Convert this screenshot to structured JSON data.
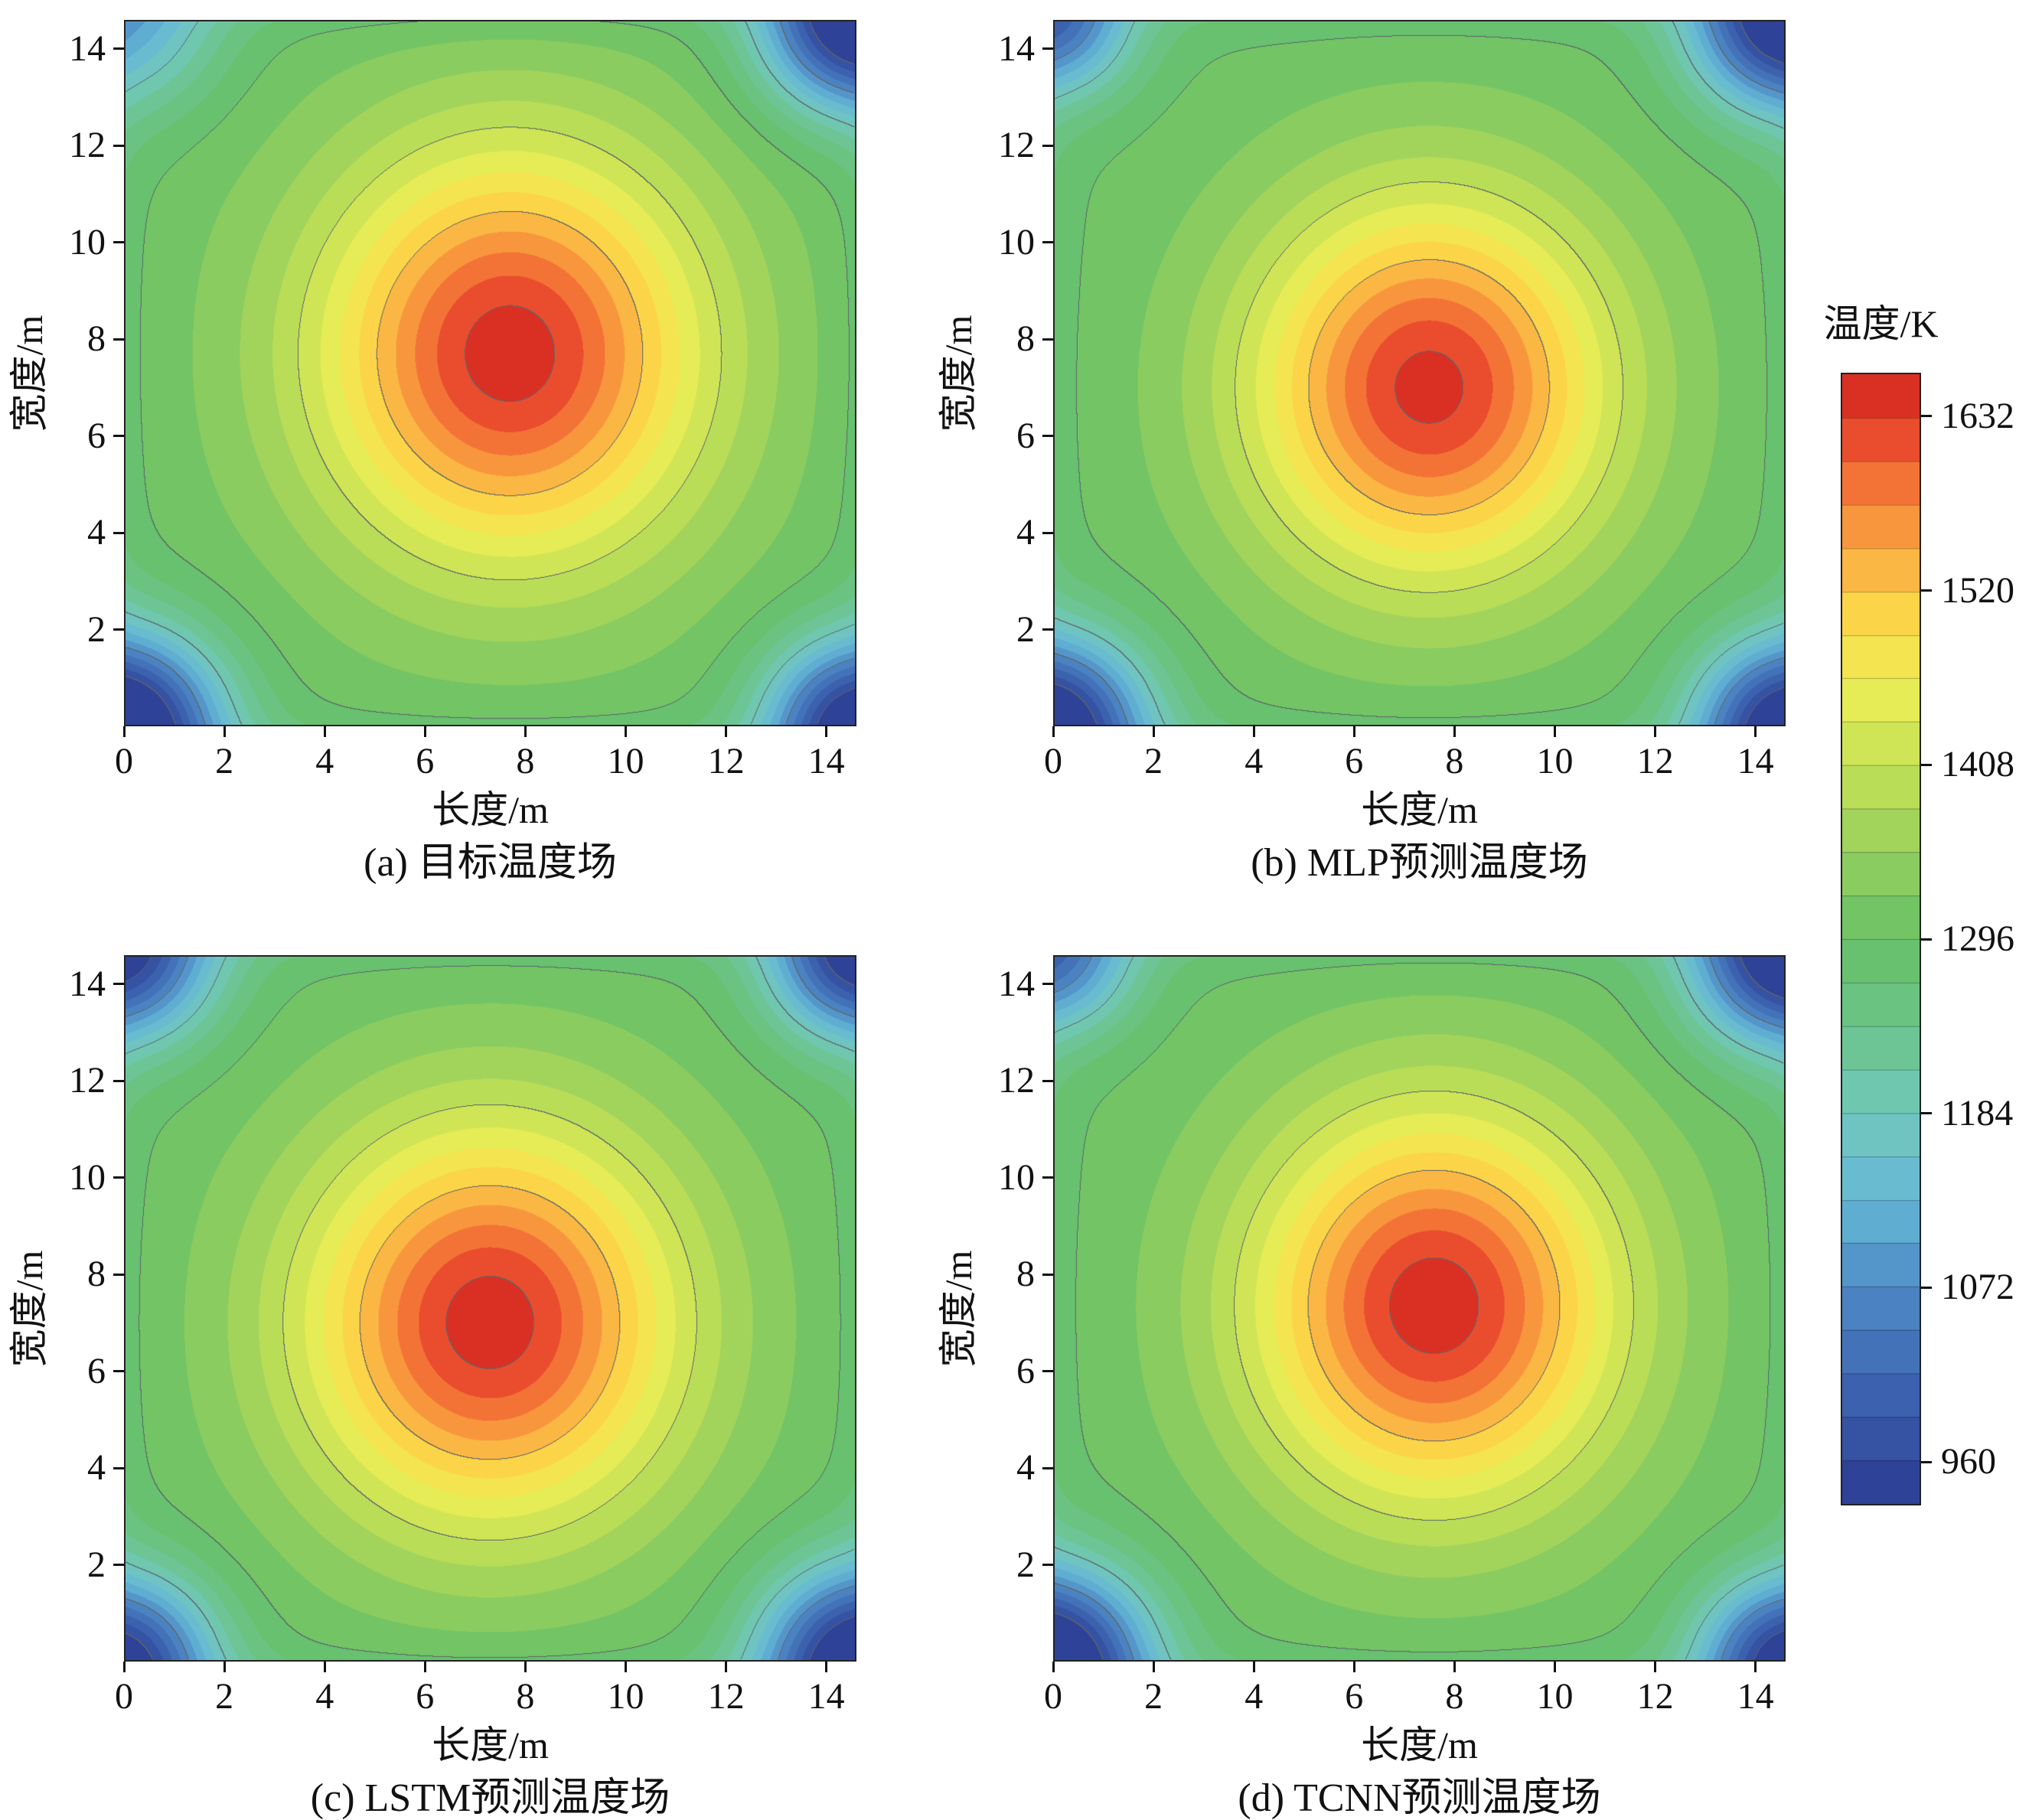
{
  "colorbar": {
    "title": "温度/K",
    "tick_labels": [
      1632,
      1520,
      1408,
      1296,
      1184,
      1072,
      960
    ],
    "value_min": 932,
    "value_max": 1660
  },
  "chart_data": {
    "type": "heatmap",
    "layout": "2x2 filled-contour subplots with shared colorbar",
    "value_unit": "K",
    "value_range": [
      932,
      1660
    ],
    "contour_interval": 28,
    "major_contour_interval": 112,
    "colorbar_title": "温度/K",
    "colorbar_ticks": [
      1632,
      1520,
      1408,
      1296,
      1184,
      1072,
      960
    ],
    "colormap": [
      [
        0.0,
        "#2b3a92"
      ],
      [
        0.1,
        "#3c63b0"
      ],
      [
        0.19,
        "#4f8ac6"
      ],
      [
        0.27,
        "#66b8d6"
      ],
      [
        0.345,
        "#72c8bc"
      ],
      [
        0.42,
        "#6cc48c"
      ],
      [
        0.5,
        "#66c066"
      ],
      [
        0.575,
        "#95cf5e"
      ],
      [
        0.655,
        "#c6e256"
      ],
      [
        0.725,
        "#eeee55"
      ],
      [
        0.795,
        "#fdd147"
      ],
      [
        0.855,
        "#f9a03f"
      ],
      [
        0.91,
        "#f26d35"
      ],
      [
        0.96,
        "#e53c28"
      ],
      [
        1.0,
        "#cf2420"
      ]
    ],
    "subplots": [
      {
        "caption": "(a) 目标温度场",
        "xlabel": "长度/m",
        "ylabel": "宽度/m",
        "x_ticks": [
          0,
          2,
          4,
          6,
          8,
          10,
          12,
          14
        ],
        "y_ticks": [
          2,
          4,
          6,
          8,
          10,
          12,
          14
        ],
        "x_max": 14.6,
        "y_max": 14.6,
        "field": {
          "base": 1302,
          "edge_amp": 28,
          "edge_scale": 0.5,
          "peak": {
            "cx": 7.7,
            "cy": 7.7,
            "sx": 2.75,
            "sy": 3.05,
            "amp": 348
          },
          "cold_corners": [
            {
              "cx": 0,
              "cy": 0,
              "amp": 410,
              "s": 1.35
            },
            {
              "cx": 14.6,
              "cy": 0,
              "amp": 370,
              "s": 1.25
            },
            {
              "cx": 14.6,
              "cy": 14.6,
              "amp": 395,
              "s": 1.3
            },
            {
              "cx": 0,
              "cy": 14.6,
              "amp": 170,
              "s": 1.3
            }
          ]
        }
      },
      {
        "caption": "(b) MLP预测温度场",
        "xlabel": "长度/m",
        "ylabel": "宽度/m",
        "x_ticks": [
          0,
          2,
          4,
          6,
          8,
          10,
          12,
          14
        ],
        "y_ticks": [
          2,
          4,
          6,
          8,
          10,
          12,
          14
        ],
        "x_max": 14.6,
        "y_max": 14.6,
        "field": {
          "base": 1300,
          "edge_amp": 28,
          "edge_scale": 0.5,
          "peak": {
            "cx": 7.5,
            "cy": 7.0,
            "sx": 2.55,
            "sy": 2.8,
            "amp": 344
          },
          "cold_corners": [
            {
              "cx": 0,
              "cy": 0,
              "amp": 380,
              "s": 1.3
            },
            {
              "cx": 14.6,
              "cy": 0,
              "amp": 370,
              "s": 1.25
            },
            {
              "cx": 14.6,
              "cy": 14.6,
              "amp": 385,
              "s": 1.3
            },
            {
              "cx": 0,
              "cy": 14.6,
              "amp": 255,
              "s": 1.1
            }
          ]
        }
      },
      {
        "caption": "(c) LSTM预测温度场",
        "xlabel": "长度/m",
        "ylabel": "宽度/m",
        "x_ticks": [
          0,
          2,
          4,
          6,
          8,
          10,
          12,
          14
        ],
        "y_ticks": [
          2,
          4,
          6,
          8,
          10,
          12,
          14
        ],
        "x_max": 14.6,
        "y_max": 14.6,
        "field": {
          "base": 1300,
          "edge_amp": 28,
          "edge_scale": 0.5,
          "peak": {
            "cx": 7.3,
            "cy": 7.0,
            "sx": 2.7,
            "sy": 2.95,
            "amp": 350
          },
          "cold_corners": [
            {
              "cx": 0,
              "cy": 0,
              "amp": 335,
              "s": 1.25
            },
            {
              "cx": 14.6,
              "cy": 0,
              "amp": 385,
              "s": 1.35
            },
            {
              "cx": 14.6,
              "cy": 14.6,
              "amp": 345,
              "s": 1.2
            },
            {
              "cx": 0,
              "cy": 14.6,
              "amp": 330,
              "s": 1.25
            }
          ]
        }
      },
      {
        "caption": "(d) TCNN预测温度场",
        "xlabel": "长度/m",
        "ylabel": "宽度/m",
        "x_ticks": [
          0,
          2,
          4,
          6,
          8,
          10,
          12,
          14
        ],
        "y_ticks": [
          2,
          4,
          6,
          8,
          10,
          12,
          14
        ],
        "x_max": 14.6,
        "y_max": 14.6,
        "field": {
          "base": 1300,
          "edge_amp": 28,
          "edge_scale": 0.5,
          "peak": {
            "cx": 7.6,
            "cy": 7.35,
            "sx": 2.6,
            "sy": 2.9,
            "amp": 352
          },
          "cold_corners": [
            {
              "cx": 0,
              "cy": 0,
              "amp": 400,
              "s": 1.35
            },
            {
              "cx": 14.6,
              "cy": 0,
              "amp": 345,
              "s": 1.2
            },
            {
              "cx": 14.6,
              "cy": 14.6,
              "amp": 385,
              "s": 1.3
            },
            {
              "cx": 0,
              "cy": 14.6,
              "amp": 245,
              "s": 1.1
            }
          ]
        }
      }
    ]
  }
}
